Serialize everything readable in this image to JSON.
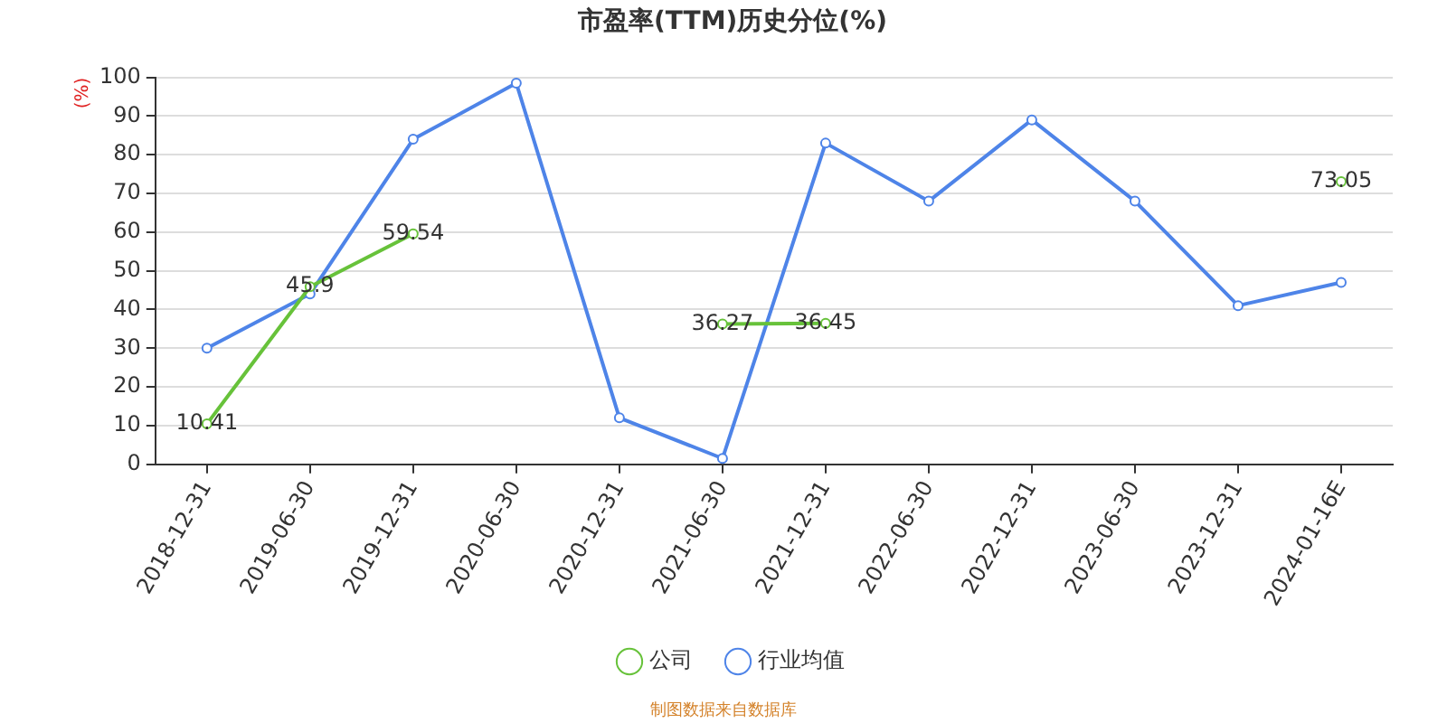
{
  "chart_data": {
    "type": "line",
    "title": "市盈率(TTM)历史分位(%)",
    "ylabel": "(%)",
    "categories": [
      "2018-12-31",
      "2019-06-30",
      "2019-12-31",
      "2020-06-30",
      "2020-12-31",
      "2021-06-30",
      "2021-12-31",
      "2022-06-30",
      "2022-12-31",
      "2023-06-30",
      "2023-12-31",
      "2024-01-16E"
    ],
    "series": [
      {
        "name": "公司",
        "color": "#67c23a",
        "values": [
          10.41,
          45.9,
          59.54,
          null,
          null,
          36.27,
          36.45,
          null,
          null,
          null,
          null,
          73.05
        ],
        "value_labels": [
          "10.41",
          "45.9",
          "59.54",
          null,
          null,
          "36.27",
          "36.45",
          null,
          null,
          null,
          null,
          "73.05"
        ]
      },
      {
        "name": "行业均值",
        "color": "#4e84e8",
        "values": [
          30,
          44,
          84,
          98.5,
          12,
          1.5,
          83,
          68,
          89,
          68,
          41,
          47
        ]
      }
    ],
    "ylim": [
      0,
      100
    ],
    "yticks": [
      0,
      10,
      20,
      30,
      40,
      50,
      60,
      70,
      80,
      90,
      100
    ],
    "grid": "y",
    "legend": "bottom",
    "marker": "circle",
    "line_style": "solid",
    "annotations": [
      "制图数据来自数据库"
    ]
  }
}
